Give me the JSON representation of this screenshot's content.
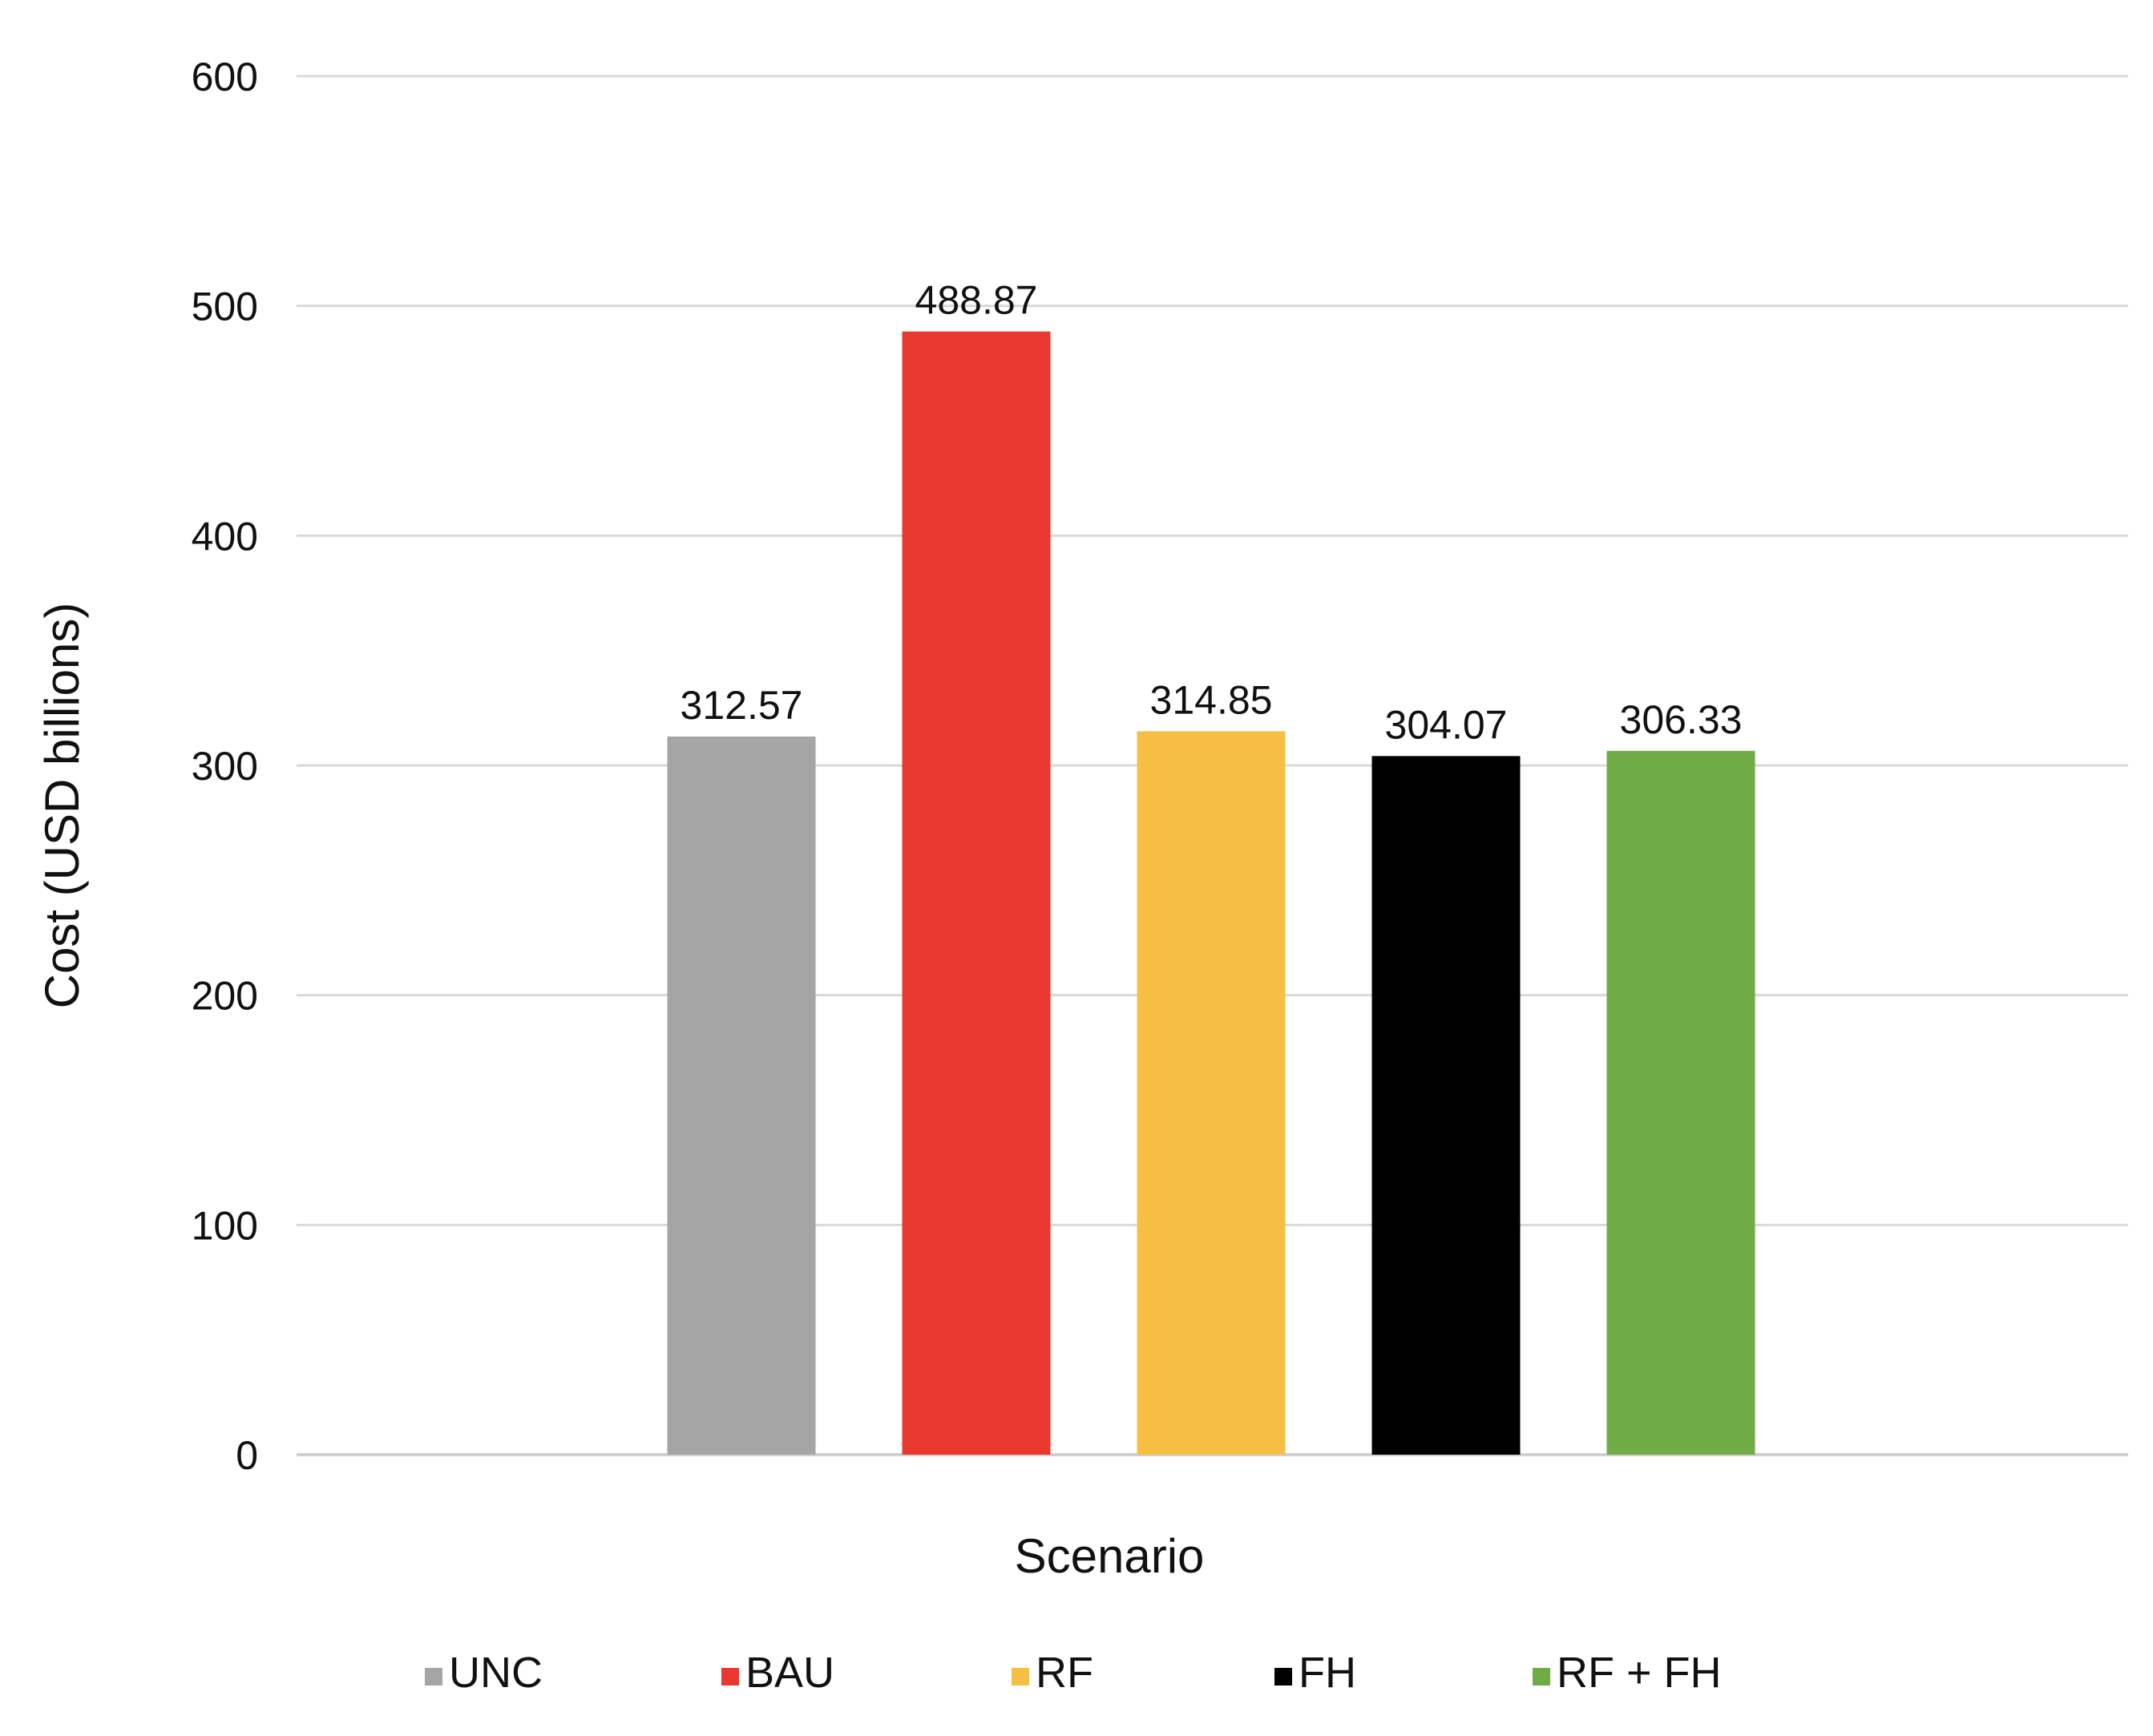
{
  "chart_data": {
    "type": "bar",
    "title": "",
    "xlabel": "Scenario",
    "ylabel": "Cost (USD billions)",
    "ylim": [
      0,
      600
    ],
    "yticks": [
      0,
      100,
      200,
      300,
      400,
      500,
      600
    ],
    "ytick_labels": [
      "0",
      "100",
      "200",
      "300",
      "400",
      "500",
      "600"
    ],
    "grid": true,
    "legend_position": "bottom",
    "series": [
      {
        "name": "UNC",
        "value": 312.57,
        "label": "312.57",
        "color": "#a5a5a5"
      },
      {
        "name": "BAU",
        "value": 488.87,
        "label": "488.87",
        "color": "#e93830"
      },
      {
        "name": "RF",
        "value": 314.85,
        "label": "314.85",
        "color": "#f7be44"
      },
      {
        "name": "FH",
        "value": 304.07,
        "label": "304.07",
        "color": "#000000"
      },
      {
        "name": "RF + FH",
        "value": 306.33,
        "label": "306.33",
        "color": "#70ac45"
      }
    ]
  }
}
